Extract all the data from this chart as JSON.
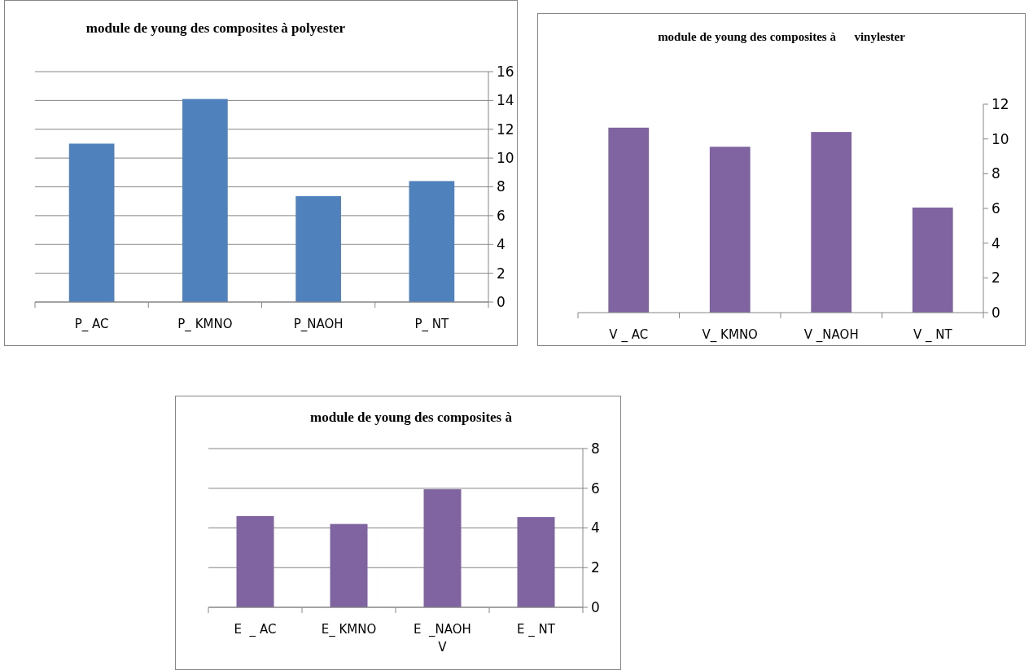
{
  "chart_data": [
    {
      "type": "bar",
      "title": "module de young des composites à polyester",
      "categories": [
        "P_ AC",
        "P_ KMNO",
        "P_NAOH",
        "P_ NT"
      ],
      "values": [
        11.0,
        14.1,
        7.35,
        8.4
      ],
      "color": "#4f81bd",
      "ylim": [
        0,
        16
      ],
      "yticks": [
        0,
        2,
        4,
        6,
        8,
        10,
        12,
        14,
        16
      ],
      "grid": "y"
    },
    {
      "type": "bar",
      "title": "module de young des composites à      vinylester",
      "categories": [
        "V _ AC",
        "V_ KMNO",
        "V _NAOH",
        "V _ NT"
      ],
      "values": [
        10.65,
        9.55,
        10.4,
        6.05
      ],
      "color": "#8064a2",
      "ylim": [
        0,
        12
      ],
      "yticks": [
        0,
        2,
        4,
        6,
        8,
        10,
        12
      ]
    },
    {
      "type": "bar",
      "title": "module de young des composites à",
      "categories": [
        "E  _ AC",
        "E_ KMNO",
        "E  _NAOH\nV",
        "E _ NT"
      ],
      "values": [
        4.6,
        4.2,
        5.95,
        4.55
      ],
      "color": "#8064a2",
      "ylim": [
        0,
        8
      ],
      "yticks": [
        0,
        2,
        4,
        6,
        8
      ],
      "grid": "y"
    }
  ]
}
